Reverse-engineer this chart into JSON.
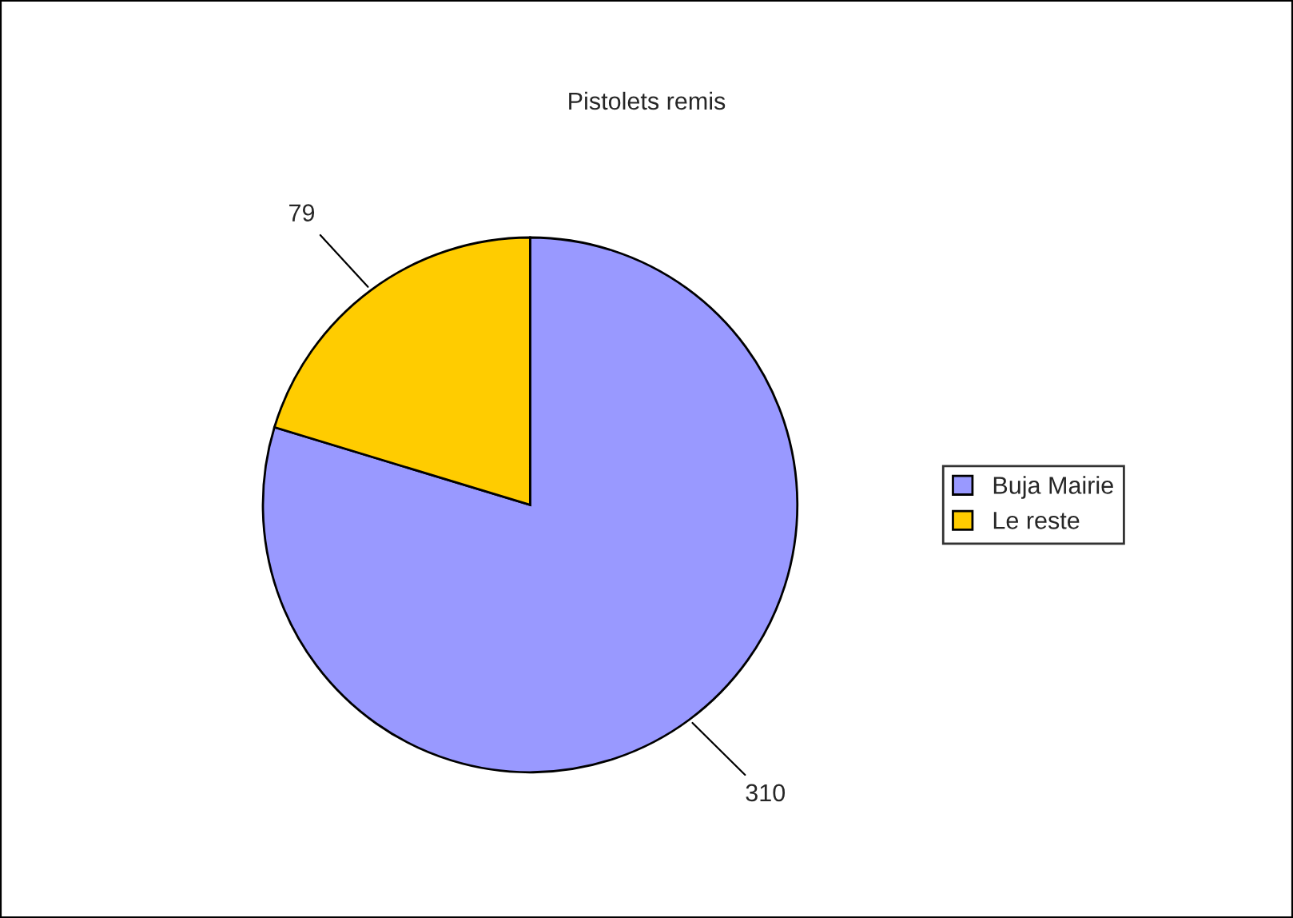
{
  "chart_data": {
    "type": "pie",
    "title": "Pistolets remis",
    "categories": [
      "Buja Mairie",
      "Le reste"
    ],
    "values": [
      310,
      79
    ],
    "colors": [
      "#9999ff",
      "#ffcc00"
    ],
    "data_labels": true,
    "legend": "right"
  }
}
